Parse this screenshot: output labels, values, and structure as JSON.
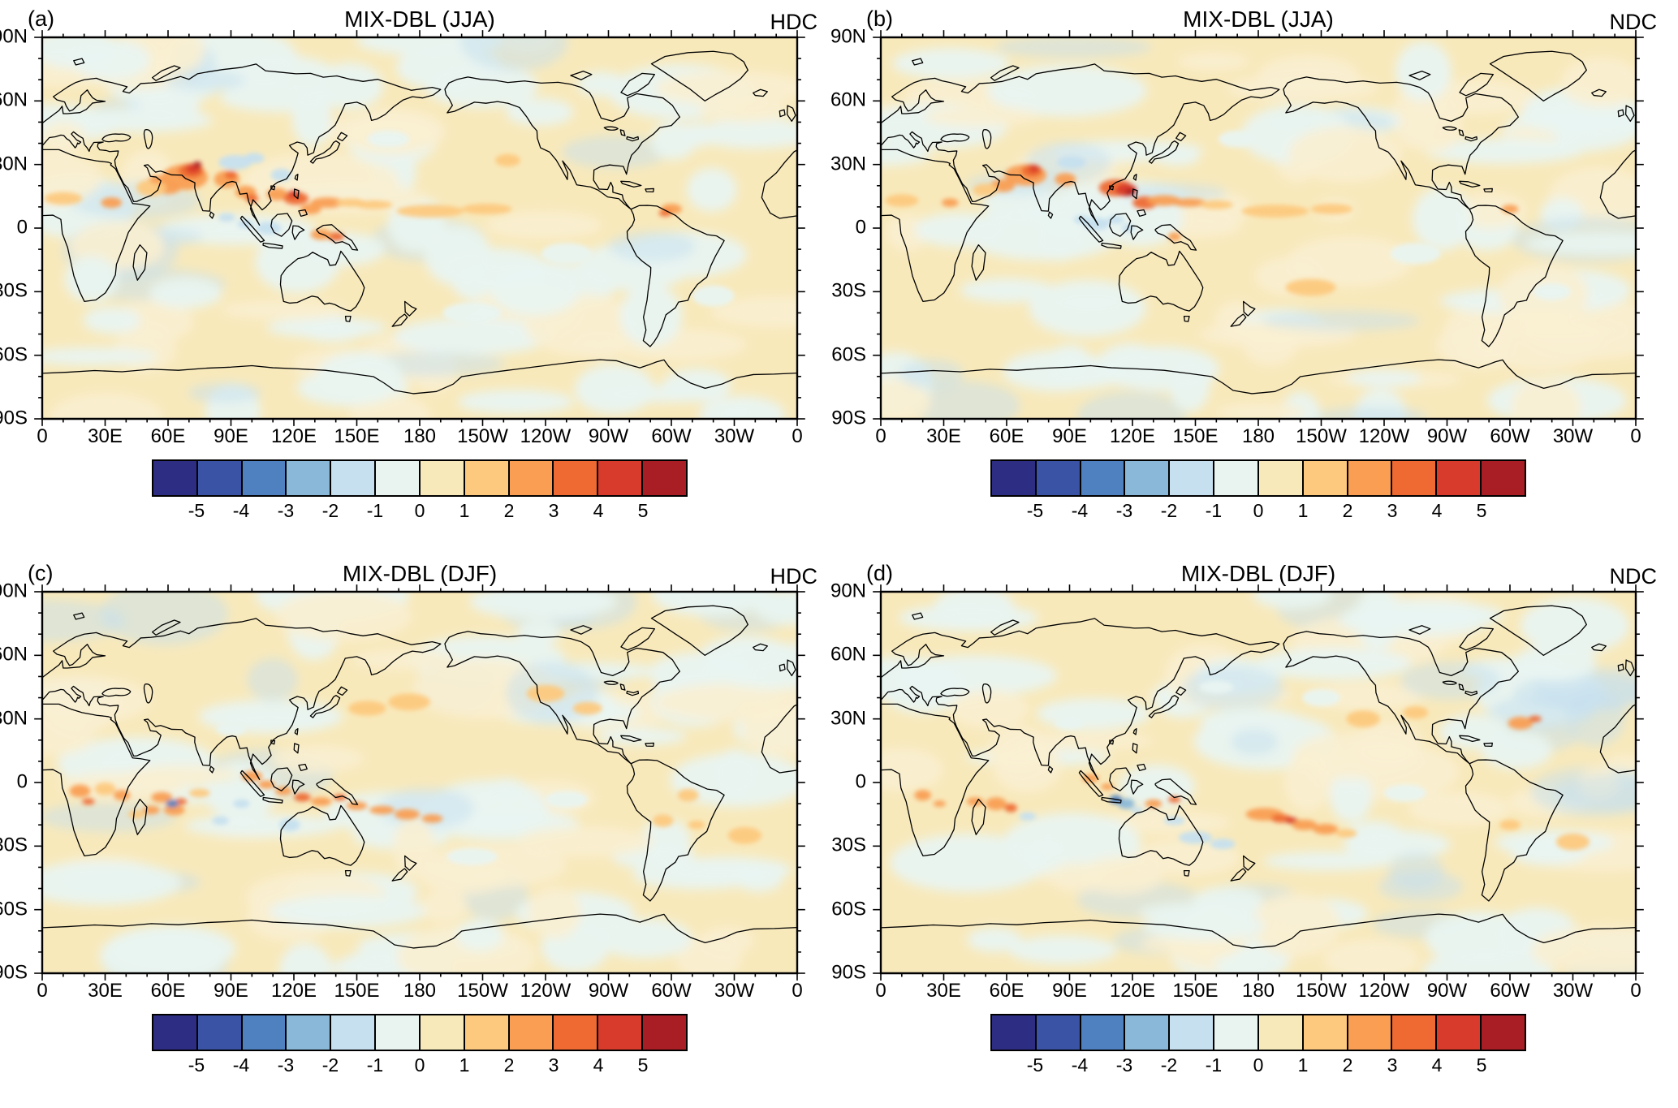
{
  "chart_data": {
    "type": "heatmap",
    "subtype": "filled_contour_world_maps",
    "projection": "equirectangular_pacific_centered",
    "lon_range_deg_east": [
      0,
      360
    ],
    "lat_range": [
      -90,
      90
    ],
    "grid": "2x2",
    "axes": {
      "lon_ticks": [
        "0",
        "30E",
        "60E",
        "90E",
        "120E",
        "150E",
        "180",
        "150W",
        "120W",
        "90W",
        "60W",
        "30W",
        "0"
      ],
      "lat_ticks": [
        "90N",
        "60N",
        "30N",
        "0",
        "30S",
        "60S",
        "90S"
      ]
    },
    "colorbar": {
      "tick_labels": [
        "-5",
        "-4",
        "-3",
        "-2",
        "-1",
        "0",
        "1",
        "2",
        "3",
        "4",
        "5"
      ],
      "colors": [
        "#2d2e83",
        "#3a53a4",
        "#4f80bf",
        "#8ab8d9",
        "#c6e0ef",
        "#e9f4f1",
        "#f8e9bb",
        "#fdc97e",
        "#f99e52",
        "#ee6a32",
        "#d83b2b",
        "#a81e24"
      ],
      "n_boxes": 12
    },
    "panels": [
      {
        "panel_label": "(a)",
        "title": "MIX-DBL (JJA)",
        "corner_label": "HDC",
        "anomalies_lon_lat_rx_ry_ci": [
          [
            68,
            24,
            11,
            6,
            8
          ],
          [
            71,
            27,
            6,
            3.5,
            9
          ],
          [
            72,
            28,
            3.5,
            2.2,
            10
          ],
          [
            74,
            30,
            2,
            1.4,
            11
          ],
          [
            60,
            19,
            6,
            3,
            8
          ],
          [
            52,
            19,
            7,
            4,
            7
          ],
          [
            55,
            23,
            4,
            2,
            8
          ],
          [
            88,
            23,
            6,
            4,
            8
          ],
          [
            90,
            25,
            3,
            2,
            9
          ],
          [
            97,
            17,
            5,
            3,
            8
          ],
          [
            100,
            14,
            3,
            2,
            9
          ],
          [
            112,
            16,
            5,
            3,
            8
          ],
          [
            121,
            14,
            6,
            3,
            9
          ],
          [
            120,
            16,
            3,
            1.8,
            10
          ],
          [
            128,
            9,
            5,
            2.5,
            8
          ],
          [
            136,
            12,
            8,
            2.5,
            8
          ],
          [
            147,
            12,
            7,
            2,
            7
          ],
          [
            158,
            11,
            9,
            2,
            7
          ],
          [
            140,
            -4,
            4,
            2,
            9
          ],
          [
            133,
            -3,
            5,
            2.5,
            8
          ],
          [
            185,
            8,
            16,
            3,
            7
          ],
          [
            212,
            9,
            12,
            2.5,
            7
          ],
          [
            222,
            32,
            6,
            3,
            7
          ],
          [
            300,
            9,
            5,
            2.5,
            8
          ],
          [
            297,
            7,
            3,
            1.5,
            9
          ],
          [
            10,
            14,
            9,
            3,
            7
          ],
          [
            33,
            12,
            5,
            2.5,
            8
          ],
          [
            92,
            31,
            8,
            3.5,
            4
          ],
          [
            101,
            33,
            5,
            2.5,
            4
          ],
          [
            114,
            25,
            5,
            3,
            4
          ],
          [
            108,
            0,
            6,
            3,
            4
          ],
          [
            97,
            2,
            4,
            2,
            4
          ],
          [
            88,
            5,
            4,
            2,
            4
          ],
          [
            250,
            -12,
            12,
            5,
            5
          ],
          [
            320,
            -32,
            10,
            5,
            5
          ],
          [
            165,
            42,
            10,
            4,
            5
          ],
          [
            205,
            -40,
            14,
            5,
            5
          ]
        ]
      },
      {
        "panel_label": "(b)",
        "title": "MIX-DBL (JJA)",
        "corner_label": "NDC",
        "anomalies_lon_lat_rx_ry_ci": [
          [
            69,
            25,
            10,
            5,
            8
          ],
          [
            72,
            27,
            5,
            3,
            9
          ],
          [
            73,
            28,
            2.5,
            1.8,
            10
          ],
          [
            58,
            20,
            6,
            3,
            8
          ],
          [
            50,
            18,
            6,
            3,
            7
          ],
          [
            88,
            23,
            5,
            3,
            8
          ],
          [
            112,
            19,
            8,
            4,
            9
          ],
          [
            117,
            18,
            5,
            3,
            10
          ],
          [
            119,
            17,
            2.5,
            1.5,
            11
          ],
          [
            126,
            12,
            6,
            3,
            9
          ],
          [
            135,
            13,
            8,
            2.5,
            8
          ],
          [
            147,
            12,
            8,
            2,
            8
          ],
          [
            160,
            11,
            8,
            2,
            7
          ],
          [
            140,
            -4,
            3,
            2,
            8
          ],
          [
            188,
            8,
            16,
            3,
            7
          ],
          [
            215,
            9,
            10,
            2.5,
            7
          ],
          [
            300,
            9,
            4,
            2,
            8
          ],
          [
            10,
            13,
            8,
            3,
            7
          ],
          [
            33,
            12,
            4,
            2,
            8
          ],
          [
            205,
            -28,
            12,
            4,
            7
          ],
          [
            91,
            31,
            7,
            3,
            4
          ],
          [
            103,
            2,
            6,
            3,
            4
          ],
          [
            96,
            4,
            4,
            2,
            4
          ],
          [
            112,
            4,
            4,
            2,
            4
          ],
          [
            118,
            0,
            3,
            2,
            4
          ],
          [
            255,
            -12,
            12,
            5,
            5
          ],
          [
            320,
            -30,
            9,
            4,
            5
          ],
          [
            170,
            42,
            9,
            4,
            5
          ]
        ]
      },
      {
        "panel_label": "(c)",
        "title": "MIX-DBL (DJF)",
        "corner_label": "HDC",
        "anomalies_lon_lat_rx_ry_ci": [
          [
            57,
            -7,
            5,
            2.5,
            8
          ],
          [
            63,
            -13,
            5,
            2.5,
            8
          ],
          [
            52,
            -13,
            4,
            2,
            8
          ],
          [
            66,
            -9,
            3,
            1.5,
            9
          ],
          [
            62,
            -10,
            3,
            1.8,
            2
          ],
          [
            45,
            -15,
            4,
            2,
            7
          ],
          [
            38,
            -6,
            4,
            2.5,
            8
          ],
          [
            30,
            -3,
            5,
            3,
            7
          ],
          [
            18,
            -4,
            5,
            3,
            8
          ],
          [
            22,
            -9,
            3,
            1.5,
            9
          ],
          [
            75,
            -5,
            5,
            2,
            7
          ],
          [
            100,
            3,
            5,
            2.5,
            8
          ],
          [
            107,
            -1,
            4,
            2,
            8
          ],
          [
            115,
            -4,
            4,
            2,
            8
          ],
          [
            124,
            -7,
            4,
            2,
            9
          ],
          [
            133,
            -9,
            5,
            2,
            8
          ],
          [
            142,
            -7,
            3,
            1.5,
            9
          ],
          [
            150,
            -11,
            5,
            2,
            8
          ],
          [
            162,
            -13,
            6,
            2,
            8
          ],
          [
            174,
            -15,
            6,
            2.5,
            8
          ],
          [
            186,
            -17,
            5,
            2,
            8
          ],
          [
            95,
            -10,
            4,
            2,
            4
          ],
          [
            118,
            -20,
            5,
            3,
            4
          ],
          [
            85,
            -18,
            4,
            2,
            4
          ],
          [
            155,
            35,
            9,
            3.5,
            7
          ],
          [
            175,
            38,
            10,
            4,
            7
          ],
          [
            240,
            42,
            9,
            4,
            7
          ],
          [
            260,
            35,
            7,
            3,
            7
          ],
          [
            296,
            -18,
            5,
            3,
            7
          ],
          [
            308,
            -6,
            5,
            3,
            7
          ],
          [
            312,
            -20,
            4,
            2,
            7
          ],
          [
            205,
            -35,
            12,
            4,
            5
          ],
          [
            250,
            -8,
            10,
            4,
            5
          ],
          [
            90,
            25,
            7,
            3,
            5
          ],
          [
            335,
            -25,
            8,
            4,
            7
          ]
        ]
      },
      {
        "panel_label": "(d)",
        "title": "MIX-DBL (DJF)",
        "corner_label": "NDC",
        "anomalies_lon_lat_rx_ry_ci": [
          [
            183,
            -15,
            9,
            3,
            8
          ],
          [
            191,
            -17,
            5,
            2,
            9
          ],
          [
            196,
            -18,
            3,
            1.5,
            10
          ],
          [
            202,
            -20,
            6,
            2.5,
            8
          ],
          [
            212,
            -22,
            6,
            2.5,
            8
          ],
          [
            222,
            -24,
            5,
            2,
            7
          ],
          [
            117,
            -10,
            4,
            2.5,
            3
          ],
          [
            112,
            -8,
            3,
            2,
            2
          ],
          [
            122,
            -13,
            3,
            1.5,
            4
          ],
          [
            150,
            -26,
            8,
            3,
            4
          ],
          [
            163,
            -29,
            6,
            2.5,
            4
          ],
          [
            140,
            -18,
            5,
            2,
            4
          ],
          [
            55,
            -10,
            5,
            3,
            8
          ],
          [
            62,
            -12,
            3,
            2,
            9
          ],
          [
            45,
            -9,
            4,
            2,
            8
          ],
          [
            70,
            -16,
            4,
            2,
            4
          ],
          [
            100,
            2,
            4,
            2,
            8
          ],
          [
            108,
            -2,
            3,
            1.5,
            8
          ],
          [
            130,
            -10,
            4,
            2,
            8
          ],
          [
            140,
            -8,
            3,
            1.5,
            9
          ],
          [
            20,
            -6,
            4,
            2.5,
            8
          ],
          [
            28,
            -10,
            3,
            1.5,
            8
          ],
          [
            230,
            30,
            8,
            4,
            7
          ],
          [
            255,
            33,
            6,
            3,
            7
          ],
          [
            305,
            28,
            6,
            3,
            8
          ],
          [
            312,
            30,
            3,
            1.5,
            9
          ],
          [
            330,
            -28,
            8,
            4,
            7
          ],
          [
            300,
            -20,
            5,
            2.5,
            7
          ],
          [
            210,
            40,
            9,
            4,
            5
          ],
          [
            250,
            -5,
            10,
            4,
            5
          ],
          [
            90,
            28,
            7,
            3,
            5
          ],
          [
            160,
            45,
            8,
            3,
            5
          ]
        ]
      }
    ]
  }
}
